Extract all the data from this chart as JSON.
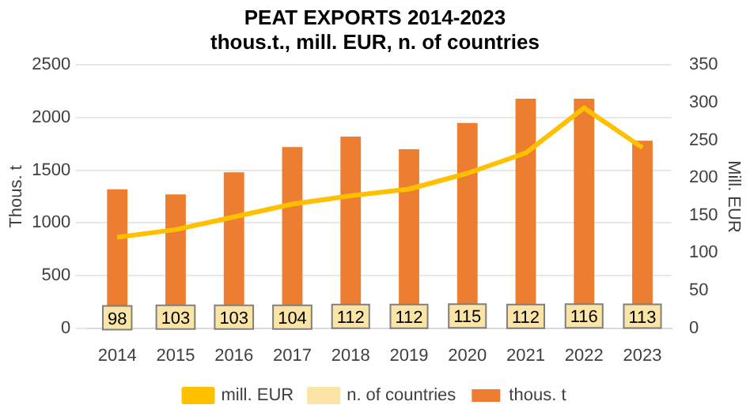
{
  "chart_data": {
    "type": "bar",
    "title": "PEAT EXPORTS 2014-2023",
    "subtitle": "thous.t., mill. EUR, n. of countries",
    "ylabel": "Thous. t",
    "y2label": "Mill. EUR",
    "categories": [
      "2014",
      "2015",
      "2016",
      "2017",
      "2018",
      "2019",
      "2020",
      "2021",
      "2022",
      "2023"
    ],
    "series": [
      {
        "name": "thous. t",
        "color": "#ed7d31",
        "values": [
          1320,
          1270,
          1480,
          1720,
          1820,
          1700,
          1950,
          2180,
          2180,
          1780
        ]
      },
      {
        "name": "n. of countries",
        "type": "scatter",
        "marker": "square",
        "color": "#fbe5a6",
        "values": [
          98,
          103,
          103,
          104,
          112,
          112,
          115,
          112,
          116,
          113
        ],
        "value_labels": [
          "98",
          "103",
          "103",
          "104",
          "112",
          "112",
          "115",
          "112",
          "116",
          "113"
        ]
      },
      {
        "name": "mill. EUR",
        "type": "line",
        "axis": "y2",
        "color": "#ffc000",
        "values": [
          121,
          131,
          148,
          165,
          176,
          185,
          206,
          233,
          293,
          240
        ]
      }
    ],
    "ylim": [
      0,
      2500
    ],
    "yticks": [
      0,
      500,
      1000,
      1500,
      2000,
      2500
    ],
    "y2lim": [
      0,
      350
    ],
    "y2ticks": [
      0,
      50,
      100,
      150,
      200,
      250,
      300,
      350
    ],
    "grid": "y",
    "legend": "bottom"
  }
}
